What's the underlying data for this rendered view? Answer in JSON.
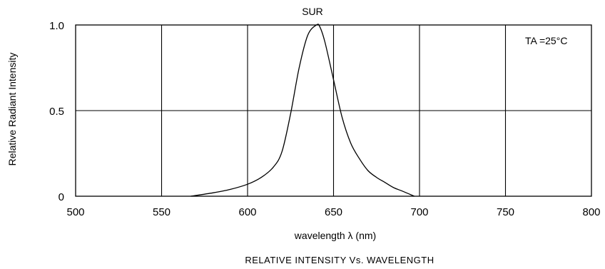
{
  "chart_data": {
    "type": "line",
    "title": "SUR",
    "caption": "RELATIVE INTENSITY Vs. WAVELENGTH",
    "xlabel": "wavelength λ (nm)",
    "ylabel": "Relative Radiant Intensity",
    "annotation": "TA =25°C",
    "xlim": [
      500,
      800
    ],
    "ylim": [
      0,
      1.0
    ],
    "x_ticks": [
      500,
      550,
      600,
      650,
      700,
      750,
      800
    ],
    "x_tick_labels": [
      "500",
      "550",
      "600",
      "650",
      "700",
      "750",
      "800"
    ],
    "y_ticks": [
      0,
      0.5,
      1.0
    ],
    "y_tick_labels": [
      "0",
      "0.5",
      "1.0"
    ],
    "grid": true,
    "series": [
      {
        "x": [
          567,
          580,
          590,
          600,
          608,
          615,
          620,
          625,
          630,
          635,
          640,
          642,
          645,
          650,
          655,
          660,
          665,
          670,
          675,
          680,
          685,
          690,
          697
        ],
        "y": [
          0.0,
          0.02,
          0.04,
          0.07,
          0.11,
          0.17,
          0.26,
          0.48,
          0.75,
          0.94,
          1.0,
          0.99,
          0.9,
          0.68,
          0.46,
          0.31,
          0.22,
          0.15,
          0.11,
          0.08,
          0.05,
          0.03,
          0.0
        ]
      }
    ]
  }
}
